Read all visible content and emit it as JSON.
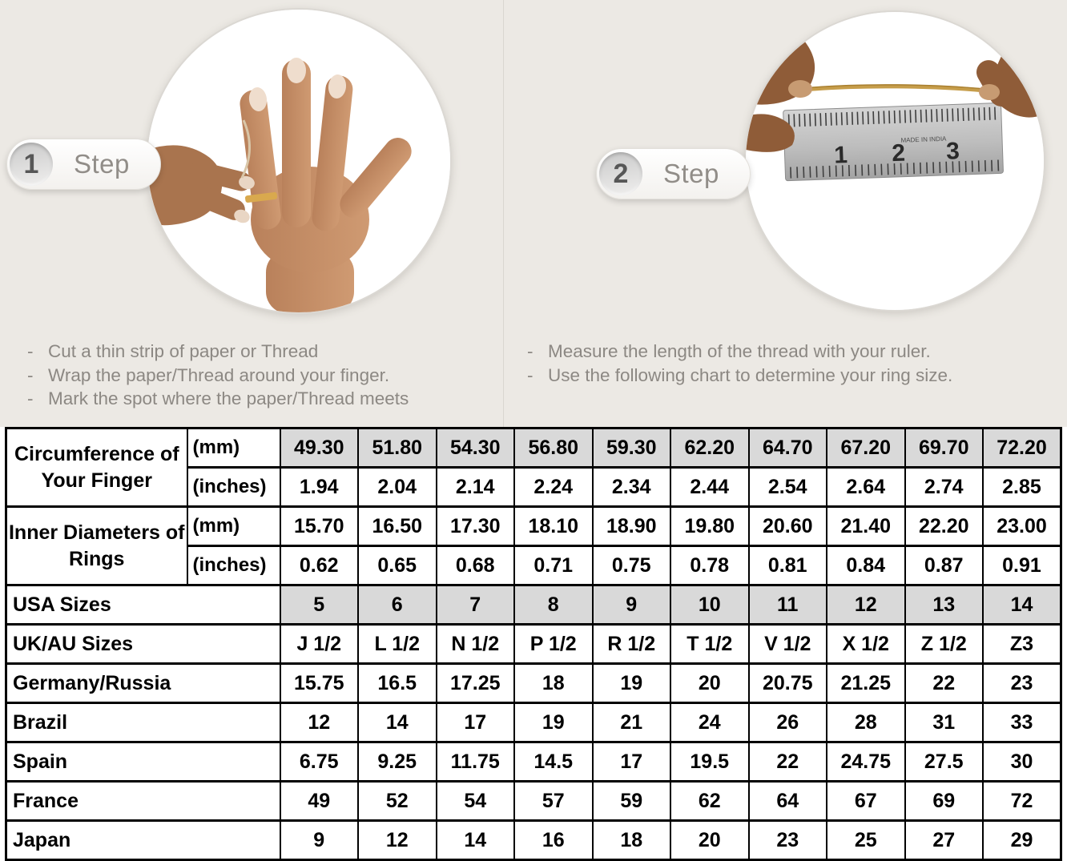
{
  "steps": [
    {
      "number": "1",
      "label": "Step",
      "photo": "hand-with-ring-and-thread",
      "bullets": [
        "Cut a thin strip of paper or Thread",
        "Wrap the paper/Thread around your finger.",
        "Mark the spot where the paper/Thread meets"
      ]
    },
    {
      "number": "2",
      "label": "Step",
      "photo": "hands-measuring-thread-on-ruler",
      "ruler_numbers": [
        "1",
        "2",
        "3"
      ],
      "ruler_brand": "MADE IN INDIA",
      "bullets": [
        "Measure the length of the thread with your ruler.",
        "Use the following chart to determine your ring size."
      ]
    }
  ],
  "colors": {
    "top_background": "#ece9e4",
    "table_shaded_cell": "#d9d9d9",
    "table_border": "#000000",
    "step_text": "#918d88",
    "bullet_text": "#8c8883",
    "thread_gold": "#c69d4a"
  },
  "table": {
    "header_sections": [
      {
        "label": "Circumference of Your Finger",
        "rows": [
          {
            "unit": "(mm)",
            "shaded": true,
            "values": [
              "49.30",
              "51.80",
              "54.30",
              "56.80",
              "59.30",
              "62.20",
              "64.70",
              "67.20",
              "69.70",
              "72.20"
            ]
          },
          {
            "unit": "(inches)",
            "shaded": false,
            "values": [
              "1.94",
              "2.04",
              "2.14",
              "2.24",
              "2.34",
              "2.44",
              "2.54",
              "2.64",
              "2.74",
              "2.85"
            ]
          }
        ]
      },
      {
        "label": "Inner Diameters of Rings",
        "rows": [
          {
            "unit": "(mm)",
            "shaded": false,
            "values": [
              "15.70",
              "16.50",
              "17.30",
              "18.10",
              "18.90",
              "19.80",
              "20.60",
              "21.40",
              "22.20",
              "23.00"
            ]
          },
          {
            "unit": "(inches)",
            "shaded": false,
            "values": [
              "0.62",
              "0.65",
              "0.68",
              "0.71",
              "0.75",
              "0.78",
              "0.81",
              "0.84",
              "0.87",
              "0.91"
            ]
          }
        ]
      }
    ],
    "size_rows": [
      {
        "label": "USA Sizes",
        "shaded": true,
        "values": [
          "5",
          "6",
          "7",
          "8",
          "9",
          "10",
          "11",
          "12",
          "13",
          "14"
        ]
      },
      {
        "label": "UK/AU Sizes",
        "shaded": false,
        "values": [
          "J 1/2",
          "L 1/2",
          "N 1/2",
          "P 1/2",
          "R 1/2",
          "T 1/2",
          "V 1/2",
          "X 1/2",
          "Z 1/2",
          "Z3"
        ]
      },
      {
        "label": "Germany/Russia",
        "shaded": false,
        "values": [
          "15.75",
          "16.5",
          "17.25",
          "18",
          "19",
          "20",
          "20.75",
          "21.25",
          "22",
          "23"
        ]
      },
      {
        "label": "Brazil",
        "shaded": false,
        "values": [
          "12",
          "14",
          "17",
          "19",
          "21",
          "24",
          "26",
          "28",
          "31",
          "33"
        ]
      },
      {
        "label": "Spain",
        "shaded": false,
        "values": [
          "6.75",
          "9.25",
          "11.75",
          "14.5",
          "17",
          "19.5",
          "22",
          "24.75",
          "27.5",
          "30"
        ]
      },
      {
        "label": "France",
        "shaded": false,
        "values": [
          "49",
          "52",
          "54",
          "57",
          "59",
          "62",
          "64",
          "67",
          "69",
          "72"
        ]
      },
      {
        "label": "Japan",
        "shaded": false,
        "values": [
          "9",
          "12",
          "14",
          "16",
          "18",
          "20",
          "23",
          "25",
          "27",
          "29"
        ]
      }
    ]
  }
}
